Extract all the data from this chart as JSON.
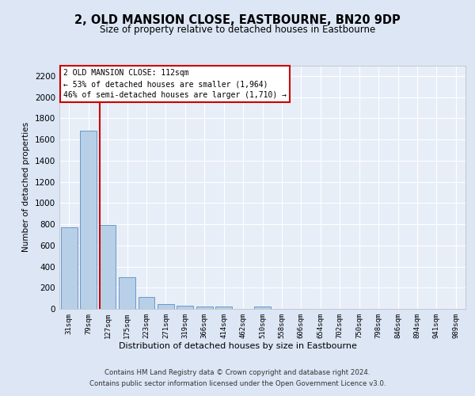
{
  "title": "2, OLD MANSION CLOSE, EASTBOURNE, BN20 9DP",
  "subtitle": "Size of property relative to detached houses in Eastbourne",
  "xlabel": "Distribution of detached houses by size in Eastbourne",
  "ylabel": "Number of detached properties",
  "categories": [
    "31sqm",
    "79sqm",
    "127sqm",
    "175sqm",
    "223sqm",
    "271sqm",
    "319sqm",
    "366sqm",
    "414sqm",
    "462sqm",
    "510sqm",
    "558sqm",
    "606sqm",
    "654sqm",
    "702sqm",
    "750sqm",
    "798sqm",
    "846sqm",
    "894sqm",
    "941sqm",
    "989sqm"
  ],
  "values": [
    770,
    1680,
    795,
    300,
    110,
    45,
    30,
    25,
    22,
    0,
    20,
    0,
    0,
    0,
    0,
    0,
    0,
    0,
    0,
    0,
    0
  ],
  "bar_color": "#b8cfe8",
  "bar_edge_color": "#6699cc",
  "annotation_text": "2 OLD MANSION CLOSE: 112sqm\n← 53% of detached houses are smaller (1,964)\n46% of semi-detached houses are larger (1,710) →",
  "annotation_box_color": "#ffffff",
  "annotation_box_edge_color": "#cc0000",
  "vline_color": "#cc0000",
  "vline_x_index": 1,
  "ylim": [
    0,
    2300
  ],
  "yticks": [
    0,
    200,
    400,
    600,
    800,
    1000,
    1200,
    1400,
    1600,
    1800,
    2000,
    2200
  ],
  "background_color": "#dce6f5",
  "axes_background_color": "#e8eef8",
  "grid_color": "#ffffff",
  "footer_line1": "Contains HM Land Registry data © Crown copyright and database right 2024.",
  "footer_line2": "Contains public sector information licensed under the Open Government Licence v3.0."
}
